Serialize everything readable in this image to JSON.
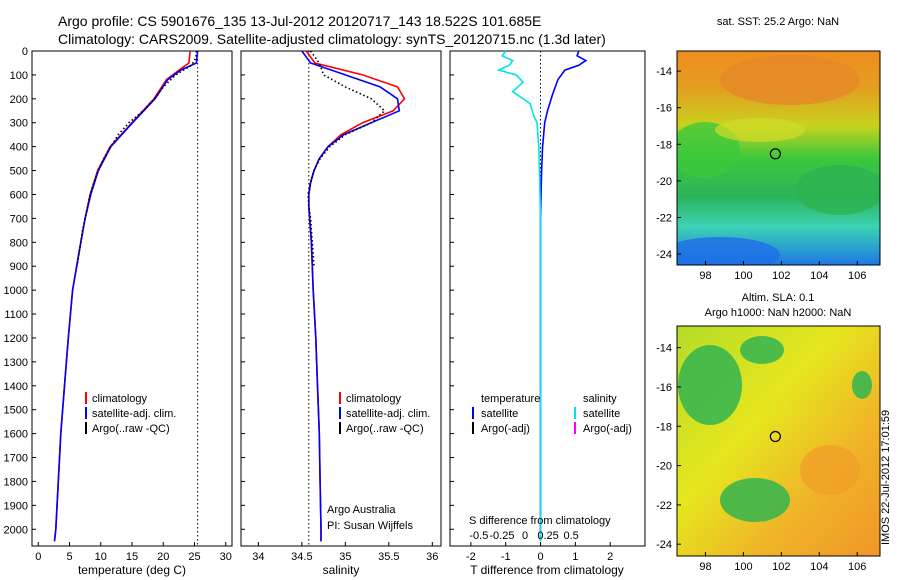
{
  "header": {
    "line1": "Argo profile: CS 5901676_135 13-Jul-2012 20120717_143 18.522S 101.685E",
    "line2": "Climatology: CARS2009. Satellite-adjusted climatology: synTS_20120715.nc (1.3d later)"
  },
  "side_stamp": "IMOS 22-Jul-2012 17:01:59",
  "colors": {
    "climatology": "#ff0000",
    "satellite": "#0000ff",
    "argo": "#000000",
    "salinity_sat": "#00e5e5",
    "salinity_argo": "#ff00ff"
  },
  "chart_data": [
    {
      "type": "line",
      "id": "temperature",
      "xlabel": "temperature (deg C)",
      "ylabel": "",
      "xlim": [
        -1,
        31
      ],
      "ylim": [
        2070,
        0
      ],
      "xticks": [
        "0",
        "5",
        "10",
        "15",
        "20",
        "25",
        "30"
      ],
      "yticks": [
        "0",
        "100",
        "200",
        "300",
        "400",
        "500",
        "600",
        "700",
        "800",
        "900",
        "1000",
        "1100",
        "1200",
        "1300",
        "1400",
        "1500",
        "1600",
        "1700",
        "1800",
        "1900",
        "2000"
      ],
      "reference_line_x": 25.5,
      "legend": [
        "climatology",
        "satellite-adj. clim.",
        "Argo(..raw -QC)"
      ],
      "series": [
        {
          "name": "climatology",
          "depth": [
            0,
            50,
            80,
            120,
            200,
            300,
            400,
            500,
            600,
            700,
            800,
            1000,
            1200,
            1400,
            1600,
            1800,
            2000,
            2050
          ],
          "values": [
            24.3,
            24.1,
            22.5,
            20.5,
            18.5,
            15.0,
            11.5,
            9.5,
            8.3,
            7.5,
            6.8,
            5.5,
            4.8,
            4.2,
            3.6,
            3.2,
            2.8,
            2.6
          ]
        },
        {
          "name": "satellite-adj. clim.",
          "depth": [
            0,
            50,
            80,
            120,
            200,
            300,
            400,
            500,
            600,
            700,
            800,
            1000,
            1200,
            1400,
            1600,
            1800,
            2000,
            2050
          ],
          "values": [
            25.5,
            25.3,
            22.8,
            20.7,
            18.7,
            15.1,
            11.6,
            9.6,
            8.4,
            7.5,
            6.8,
            5.5,
            4.8,
            4.2,
            3.6,
            3.2,
            2.8,
            2.6
          ]
        },
        {
          "name": "Argo(..raw -QC)",
          "depth": [
            0,
            30,
            60,
            100,
            150,
            200,
            250,
            300,
            350,
            400,
            450,
            500,
            550,
            600,
            650,
            700,
            750,
            800,
            850,
            900
          ],
          "values": [
            25.3,
            25.2,
            24.5,
            22.0,
            20.0,
            18.6,
            16.8,
            14.5,
            12.8,
            11.6,
            10.5,
            9.6,
            8.9,
            8.3,
            7.9,
            7.5,
            7.1,
            6.8,
            6.5,
            6.2
          ]
        }
      ]
    },
    {
      "type": "line",
      "id": "salinity",
      "xlabel": "salinity",
      "xlim": [
        33.8,
        36.1
      ],
      "ylim": [
        2070,
        0
      ],
      "xticks": [
        "34",
        "34.5",
        "35",
        "35.5",
        "36"
      ],
      "reference_line_x": 34.58,
      "legend": [
        "climatology",
        "satellite-adj. clim.",
        "Argo(..raw -QC)"
      ],
      "annotation": [
        "Argo Australia",
        "PI: Susan Wijffels"
      ],
      "series": [
        {
          "name": "climatology",
          "depth": [
            0,
            50,
            100,
            150,
            200,
            250,
            300,
            350,
            400,
            450,
            500,
            550,
            600,
            650,
            700,
            800,
            1000,
            1200,
            1400,
            1600,
            1800,
            2000,
            2050
          ],
          "values": [
            34.55,
            34.65,
            35.2,
            35.6,
            35.68,
            35.55,
            35.2,
            34.95,
            34.8,
            34.7,
            34.64,
            34.6,
            34.58,
            34.58,
            34.59,
            34.61,
            34.63,
            34.66,
            34.68,
            34.7,
            34.71,
            34.72,
            34.72
          ]
        },
        {
          "name": "satellite-adj. clim.",
          "depth": [
            0,
            50,
            100,
            150,
            200,
            250,
            300,
            350,
            400,
            450,
            500,
            550,
            600,
            650,
            700,
            800,
            1000,
            1200,
            1400,
            1600,
            1800,
            2000,
            2050
          ],
          "values": [
            34.5,
            34.6,
            35.0,
            35.4,
            35.6,
            35.62,
            35.3,
            34.98,
            34.8,
            34.7,
            34.64,
            34.6,
            34.58,
            34.58,
            34.59,
            34.61,
            34.63,
            34.66,
            34.68,
            34.7,
            34.71,
            34.72,
            34.72
          ]
        },
        {
          "name": "Argo(..raw -QC)",
          "depth": [
            0,
            50,
            100,
            150,
            200,
            250,
            300,
            350,
            400,
            450,
            500,
            550,
            600,
            650,
            700,
            750,
            800,
            850,
            900
          ],
          "values": [
            34.6,
            34.7,
            34.75,
            35.0,
            35.3,
            35.45,
            35.3,
            35.0,
            34.82,
            34.71,
            34.64,
            34.6,
            34.57,
            34.58,
            34.6,
            34.61,
            34.62,
            34.63,
            34.64
          ]
        }
      ]
    },
    {
      "type": "line",
      "id": "difference",
      "xlabel": "T difference from climatology",
      "xlabel_top": "S difference from climatology",
      "xlim": [
        -2.6,
        3.0
      ],
      "ylim": [
        2070,
        0
      ],
      "xticks": [
        "-2",
        "-1",
        "0",
        "1",
        "2"
      ],
      "xticks_salinity": [
        "-0.5",
        "-0.25",
        "0",
        "0.25",
        "0.5"
      ],
      "reference_line_x": 0,
      "legend_headers": [
        "temperature",
        "salinity"
      ],
      "legend": [
        "satellite",
        "Argo(-adj)",
        "satellite",
        "Argo(-adj)"
      ],
      "series": [
        {
          "name": "temperature satellite",
          "depth": [
            0,
            20,
            40,
            60,
            80,
            120,
            180,
            250,
            300,
            400,
            500,
            700,
            900,
            1200,
            1500,
            1800,
            2050
          ],
          "values": [
            1.1,
            1.05,
            1.3,
            1.1,
            0.7,
            0.5,
            0.35,
            0.2,
            0.12,
            0.06,
            0.03,
            0.0,
            0.0,
            0.0,
            0.0,
            0.0,
            0.0
          ]
        },
        {
          "name": "salinity satellite",
          "depth": [
            0,
            20,
            40,
            60,
            80,
            100,
            130,
            170,
            220,
            270,
            300,
            350,
            400,
            500,
            700,
            900,
            1200,
            1500,
            1800,
            2050
          ],
          "values": [
            -1.0,
            -1.1,
            -0.8,
            -0.9,
            -1.2,
            -0.7,
            -0.5,
            -0.8,
            -0.3,
            -0.2,
            -0.1,
            -0.08,
            -0.05,
            -0.03,
            0.0,
            0.0,
            0.0,
            0.0,
            0.0,
            0.0
          ]
        }
      ]
    },
    {
      "type": "heatmap",
      "id": "sst_map",
      "title": "sat. SST: 25.2 Argo: NaN",
      "xticks": [
        "98",
        "100",
        "102",
        "104",
        "106"
      ],
      "yticks": [
        "-14",
        "-16",
        "-18",
        "-20",
        "-22",
        "-24"
      ],
      "xlim": [
        96.5,
        107.2
      ],
      "ylim": [
        -24.6,
        -12.9
      ],
      "marker": {
        "lon": 101.685,
        "lat": -18.522
      }
    },
    {
      "type": "heatmap",
      "id": "sla_map",
      "title": "Altim. SLA: 0.1",
      "subtitle": "Argo h1000: NaN h2000: NaN",
      "xticks": [
        "98",
        "100",
        "102",
        "104",
        "106"
      ],
      "yticks": [
        "-14",
        "-16",
        "-18",
        "-20",
        "-22",
        "-24"
      ],
      "xlim": [
        96.5,
        107.2
      ],
      "ylim": [
        -24.6,
        -12.9
      ],
      "marker": {
        "lon": 101.685,
        "lat": -18.522
      }
    }
  ]
}
